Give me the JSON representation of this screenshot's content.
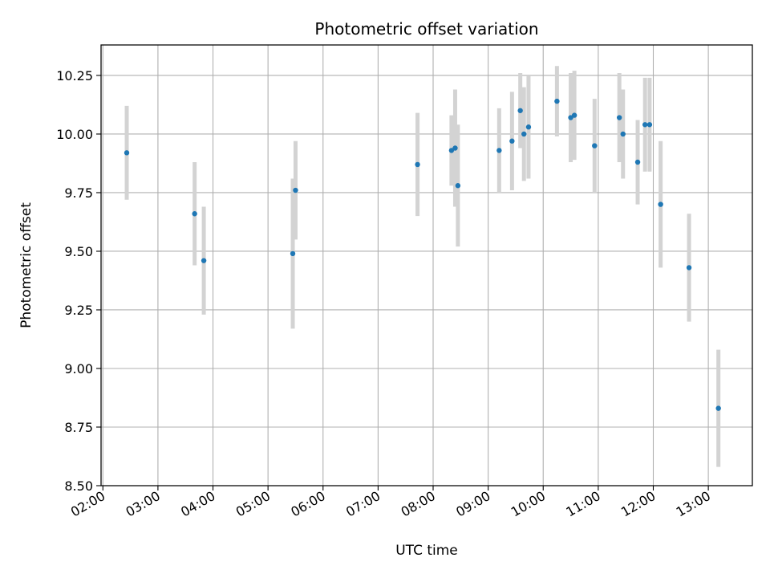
{
  "chart_data": {
    "type": "scatter",
    "title": "Photometric offset variation",
    "xlabel": "UTC time",
    "ylabel": "Photometric offset",
    "x_ticks": [
      "02:00",
      "03:00",
      "04:00",
      "05:00",
      "06:00",
      "07:00",
      "08:00",
      "09:00",
      "10:00",
      "11:00",
      "12:00",
      "13:00"
    ],
    "y_ticks": [
      "8.50",
      "8.75",
      "9.00",
      "9.25",
      "9.50",
      "9.75",
      "10.00",
      "10.25"
    ],
    "xlim": [
      "01:58",
      "13:48"
    ],
    "ylim": [
      8.5,
      10.38
    ],
    "grid": true,
    "colors": {
      "points": "#1f77b4",
      "errorbars": "#d3d3d3",
      "grid": "#b0b0b0"
    },
    "points": [
      {
        "x": "02:26",
        "y": 9.92,
        "yerr": 0.2
      },
      {
        "x": "03:40",
        "y": 9.66,
        "yerr": 0.22
      },
      {
        "x": "03:50",
        "y": 9.46,
        "yerr": 0.23
      },
      {
        "x": "05:27",
        "y": 9.49,
        "yerr": 0.32
      },
      {
        "x": "05:30",
        "y": 9.76,
        "yerr": 0.21
      },
      {
        "x": "07:43",
        "y": 9.87,
        "yerr": 0.22
      },
      {
        "x": "08:20",
        "y": 9.93,
        "yerr": 0.15
      },
      {
        "x": "08:24",
        "y": 9.94,
        "yerr": 0.25
      },
      {
        "x": "08:27",
        "y": 9.78,
        "yerr": 0.26
      },
      {
        "x": "09:12",
        "y": 9.93,
        "yerr": 0.18
      },
      {
        "x": "09:26",
        "y": 9.97,
        "yerr": 0.21
      },
      {
        "x": "09:35",
        "y": 10.1,
        "yerr": 0.16
      },
      {
        "x": "09:39",
        "y": 10.0,
        "yerr": 0.2
      },
      {
        "x": "09:44",
        "y": 10.03,
        "yerr": 0.22
      },
      {
        "x": "10:15",
        "y": 10.14,
        "yerr": 0.15
      },
      {
        "x": "10:30",
        "y": 10.07,
        "yerr": 0.19
      },
      {
        "x": "10:34",
        "y": 10.08,
        "yerr": 0.19
      },
      {
        "x": "10:56",
        "y": 9.95,
        "yerr": 0.2
      },
      {
        "x": "11:23",
        "y": 10.07,
        "yerr": 0.19
      },
      {
        "x": "11:27",
        "y": 10.0,
        "yerr": 0.19
      },
      {
        "x": "11:43",
        "y": 9.88,
        "yerr": 0.18
      },
      {
        "x": "11:51",
        "y": 10.04,
        "yerr": 0.2
      },
      {
        "x": "11:56",
        "y": 10.04,
        "yerr": 0.2
      },
      {
        "x": "12:08",
        "y": 9.7,
        "yerr": 0.27
      },
      {
        "x": "12:39",
        "y": 9.43,
        "yerr": 0.23
      },
      {
        "x": "13:11",
        "y": 8.83,
        "yerr": 0.25
      }
    ]
  }
}
